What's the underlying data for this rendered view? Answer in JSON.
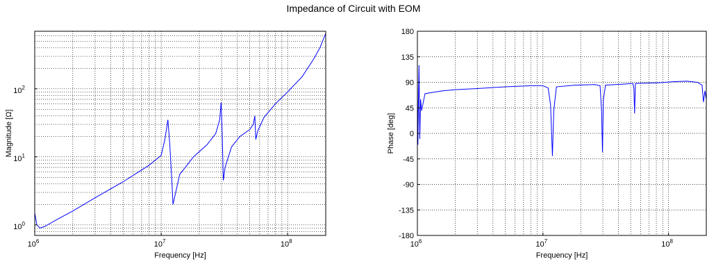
{
  "figure": {
    "title": "Impedance of Circuit with EOM"
  },
  "colors": {
    "trace": "#0000ff",
    "axis": "#000000",
    "grid": "#000000",
    "background": "#ffffff"
  },
  "chart_data": [
    {
      "type": "line",
      "xlabel": "Frequency [Hz]",
      "ylabel": "Magnitude [Ω]",
      "x_scale": "log",
      "y_scale": "log",
      "xlim": [
        1000000,
        200000000
      ],
      "ylim": [
        0.7,
        700
      ],
      "grid": true,
      "minor_grid": true,
      "x_tick_labels": [
        {
          "value": 1000000,
          "base": "10",
          "exp": "6"
        },
        {
          "value": 10000000,
          "base": "10",
          "exp": "7"
        },
        {
          "value": 100000000,
          "base": "10",
          "exp": "8"
        }
      ],
      "y_tick_labels": [
        {
          "value": 1,
          "base": "10",
          "exp": "0"
        },
        {
          "value": 10,
          "base": "10",
          "exp": "1"
        },
        {
          "value": 100,
          "base": "10",
          "exp": "2"
        }
      ],
      "series": [
        {
          "points": [
            [
              1000000,
              1.5
            ],
            [
              1040000,
              1.0
            ],
            [
              1100000,
              0.9
            ],
            [
              1200000,
              0.95
            ],
            [
              1500000,
              1.2
            ],
            [
              2000000,
              1.6
            ],
            [
              3000000,
              2.5
            ],
            [
              5000000,
              4.3
            ],
            [
              8000000,
              7.5
            ],
            [
              10000000,
              10.5
            ],
            [
              10700000,
              18
            ],
            [
              11300000,
              35
            ],
            [
              11700000,
              15
            ],
            [
              12100000,
              5
            ],
            [
              12400000,
              2.0
            ],
            [
              12800000,
              2.6
            ],
            [
              14000000,
              5.5
            ],
            [
              18000000,
              10
            ],
            [
              23000000,
              15
            ],
            [
              27000000,
              22
            ],
            [
              29000000,
              35
            ],
            [
              29800000,
              63
            ],
            [
              30400000,
              20
            ],
            [
              31000000,
              4.5
            ],
            [
              32000000,
              7
            ],
            [
              36000000,
              14
            ],
            [
              42000000,
              20
            ],
            [
              50000000,
              25
            ],
            [
              53500000,
              30
            ],
            [
              55000000,
              40
            ],
            [
              56000000,
              18
            ],
            [
              58000000,
              24
            ],
            [
              65000000,
              38
            ],
            [
              80000000,
              60
            ],
            [
              100000000,
              90
            ],
            [
              130000000,
              150
            ],
            [
              160000000,
              270
            ],
            [
              180000000,
              400
            ],
            [
              200000000,
              650
            ]
          ]
        }
      ]
    },
    {
      "type": "line",
      "xlabel": "Frequency [Hz]",
      "ylabel": "Phase [deg]",
      "x_scale": "log",
      "y_scale": "linear",
      "xlim": [
        1000000,
        200000000
      ],
      "ylim": [
        -180,
        180
      ],
      "grid": true,
      "minor_grid": false,
      "x_tick_labels": [
        {
          "value": 1000000,
          "base": "10",
          "exp": "6"
        },
        {
          "value": 10000000,
          "base": "10",
          "exp": "7"
        },
        {
          "value": 100000000,
          "base": "10",
          "exp": "8"
        }
      ],
      "y_tick_labels": [
        {
          "value": 180,
          "text": "180"
        },
        {
          "value": 135,
          "text": "135"
        },
        {
          "value": 90,
          "text": "90"
        },
        {
          "value": 45,
          "text": "45"
        },
        {
          "value": 0,
          "text": "0"
        },
        {
          "value": -45,
          "text": "-45"
        },
        {
          "value": -90,
          "text": "-90"
        },
        {
          "value": -135,
          "text": "-135"
        },
        {
          "value": -180,
          "text": "-180"
        }
      ],
      "series": [
        {
          "points": [
            [
              1000000,
              90
            ],
            [
              1010000,
              -20
            ],
            [
              1020000,
              60
            ],
            [
              1030000,
              120
            ],
            [
              1045000,
              -10
            ],
            [
              1060000,
              60
            ],
            [
              1080000,
              40
            ],
            [
              1150000,
              70
            ],
            [
              1300000,
              72
            ],
            [
              1600000,
              75
            ],
            [
              2000000,
              77
            ],
            [
              3000000,
              79
            ],
            [
              5000000,
              82
            ],
            [
              8000000,
              84
            ],
            [
              10000000,
              84
            ],
            [
              11000000,
              80
            ],
            [
              11500000,
              50
            ],
            [
              11900000,
              -40
            ],
            [
              12200000,
              40
            ],
            [
              12800000,
              82
            ],
            [
              18000000,
              85
            ],
            [
              26000000,
              86
            ],
            [
              28500000,
              84
            ],
            [
              29300000,
              40
            ],
            [
              29800000,
              -33
            ],
            [
              30300000,
              60
            ],
            [
              31500000,
              85
            ],
            [
              45000000,
              87
            ],
            [
              52000000,
              88
            ],
            [
              53000000,
              80
            ],
            [
              53700000,
              35
            ],
            [
              54500000,
              88
            ],
            [
              80000000,
              89
            ],
            [
              110000000,
              91
            ],
            [
              140000000,
              92
            ],
            [
              170000000,
              90
            ],
            [
              185000000,
              85
            ],
            [
              190000000,
              55
            ],
            [
              195000000,
              75
            ],
            [
              200000000,
              60
            ]
          ]
        }
      ]
    }
  ]
}
